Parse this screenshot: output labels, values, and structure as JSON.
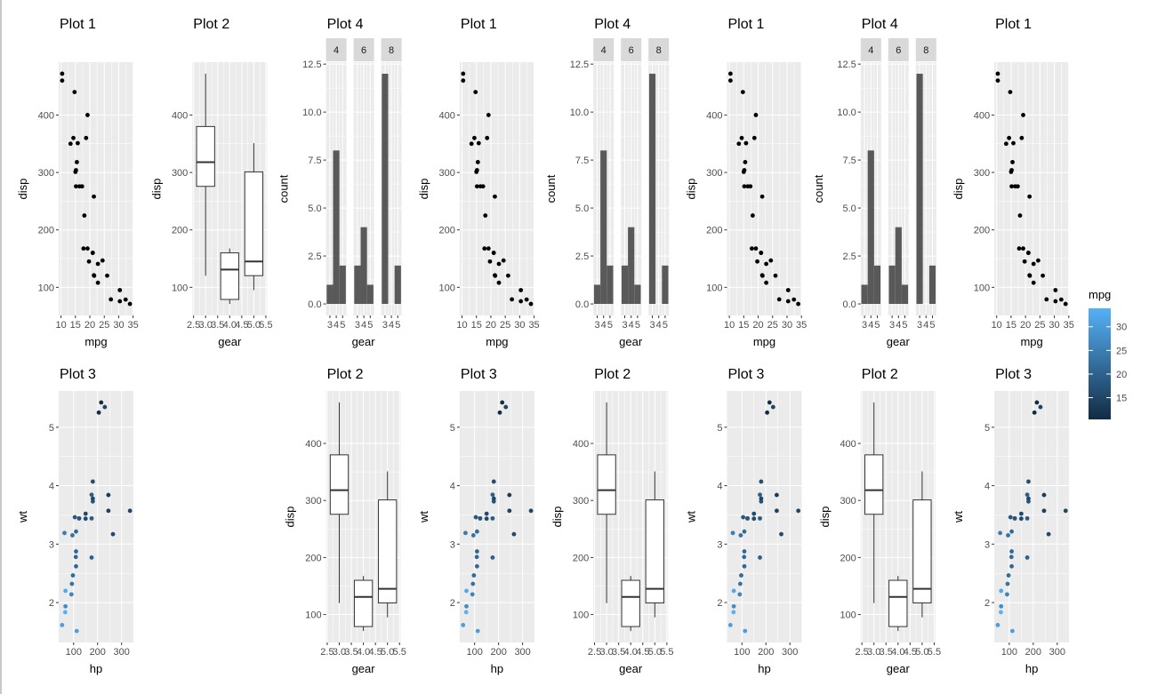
{
  "chart_data": {
    "data": {
      "mpg": [
        21,
        21,
        22.8,
        21.4,
        18.7,
        18.1,
        14.3,
        24.4,
        22.8,
        19.2,
        17.8,
        16.4,
        17.3,
        15.2,
        10.4,
        10.4,
        14.7,
        32.4,
        30.4,
        33.9,
        21.5,
        15.5,
        15.2,
        13.3,
        19.2,
        27.3,
        26,
        30.4,
        15.8,
        19.7,
        15,
        21.4
      ],
      "disp": [
        160,
        160,
        108,
        258,
        360,
        225,
        360,
        146.7,
        140.8,
        167.6,
        167.6,
        275.8,
        275.8,
        275.8,
        472,
        460,
        440,
        78.7,
        75.7,
        71.1,
        120.1,
        318,
        304,
        350,
        400,
        79,
        120.3,
        95.1,
        351,
        145,
        301,
        121
      ],
      "hp": [
        110,
        110,
        93,
        110,
        175,
        105,
        245,
        62,
        95,
        123,
        123,
        180,
        180,
        180,
        205,
        215,
        230,
        66,
        52,
        65,
        97,
        150,
        150,
        245,
        175,
        66,
        91,
        113,
        264,
        175,
        335,
        109
      ],
      "wt": [
        2.62,
        2.875,
        2.32,
        3.215,
        3.44,
        3.46,
        3.57,
        3.19,
        3.15,
        3.44,
        3.44,
        4.07,
        3.73,
        3.78,
        5.25,
        5.424,
        5.345,
        2.2,
        1.615,
        1.835,
        2.465,
        3.52,
        3.435,
        3.84,
        3.845,
        1.935,
        2.14,
        1.513,
        3.17,
        2.77,
        3.57,
        2.78
      ]
    },
    "plots": {
      "plot1": {
        "type": "scatter",
        "title": "Plot 1",
        "x": "mpg",
        "y": "disp",
        "xlabel": "mpg",
        "ylabel": "disp",
        "xlim": [
          9.2,
          35.1
        ],
        "ylim": [
          51,
          492
        ],
        "xticks": [
          10,
          15,
          20,
          25,
          30,
          35
        ],
        "xtick_labels": [
          "10",
          "15",
          "20",
          "25",
          "30",
          "35"
        ],
        "yticks": [
          100,
          200,
          300,
          400
        ],
        "ytick_labels": [
          "100",
          "200",
          "300",
          "400"
        ],
        "point_color": "#000000"
      },
      "plot2": {
        "type": "box",
        "title": "Plot 2",
        "xlabel": "gear",
        "ylabel": "disp",
        "xlim": [
          2.45,
          5.55
        ],
        "ylim": [
          51,
          492
        ],
        "xticks": [
          2.5,
          3,
          3.5,
          4,
          4.5,
          5,
          5.5
        ],
        "xtick_labels": [
          "2.5",
          "3.0",
          "3.5",
          "4.0",
          "4.5",
          "5.0",
          "5.5"
        ],
        "yticks": [
          100,
          200,
          300,
          400
        ],
        "ytick_labels": [
          "100",
          "200",
          "300",
          "400"
        ],
        "boxes": [
          {
            "x": 3,
            "min": 120.1,
            "q1": 275.8,
            "median": 318,
            "q3": 380,
            "max": 472
          },
          {
            "x": 4,
            "min": 71.1,
            "q1": 78.9,
            "median": 130.9,
            "q3": 160,
            "max": 167.6
          },
          {
            "x": 5,
            "min": 95.1,
            "q1": 120.3,
            "median": 145,
            "q3": 301,
            "max": 351
          }
        ]
      },
      "plot3": {
        "type": "scatter",
        "title": "Plot 3",
        "x": "hp",
        "y": "wt",
        "color": "mpg",
        "xlabel": "hp",
        "ylabel": "wt",
        "xlim": [
          37.8,
          349.2
        ],
        "ylim": [
          1.317,
          5.62
        ],
        "xticks": [
          100,
          200,
          300
        ],
        "xtick_labels": [
          "100",
          "200",
          "300"
        ],
        "yticks": [
          2,
          3,
          4,
          5
        ],
        "ytick_labels": [
          "2",
          "3",
          "4",
          "5"
        ]
      },
      "plot4": {
        "type": "bar",
        "title": "Plot 4",
        "xlabel": "gear",
        "ylabel": "count",
        "xlim": [
          2.4,
          5.6
        ],
        "ylim": [
          -0.6,
          12.6
        ],
        "xticks": [
          3,
          4,
          5
        ],
        "xtick_labels": [
          "3",
          "4",
          "5"
        ],
        "yticks": [
          0,
          2.5,
          5,
          7.5,
          10,
          12.5
        ],
        "ytick_labels": [
          "0.0",
          "2.5",
          "5.0",
          "7.5",
          "10.0",
          "12.5"
        ],
        "bar_color": "#595959",
        "facets": [
          {
            "label": "4",
            "counts": [
              1,
              8,
              2
            ]
          },
          {
            "label": "6",
            "counts": [
              2,
              4,
              1
            ]
          },
          {
            "label": "8",
            "counts": [
              12,
              0,
              2
            ]
          }
        ]
      }
    },
    "layout": [
      [
        "plot1",
        "plot2",
        "plot4",
        "plot1",
        "plot4",
        "plot1",
        "plot4",
        "plot1"
      ],
      [
        "plot3",
        "",
        "plot2",
        "plot3",
        "plot2",
        "plot3",
        "plot2",
        "plot3"
      ]
    ],
    "legend": {
      "title": "mpg",
      "low_color": "#132B43",
      "high_color": "#56B1F7",
      "limits": [
        10.4,
        33.9
      ],
      "breaks": [
        15,
        20,
        25,
        30
      ],
      "labels": [
        "15",
        "20",
        "25",
        "30"
      ],
      "placement": "right"
    },
    "panel_background": "#EBEBEB",
    "grid": true
  }
}
